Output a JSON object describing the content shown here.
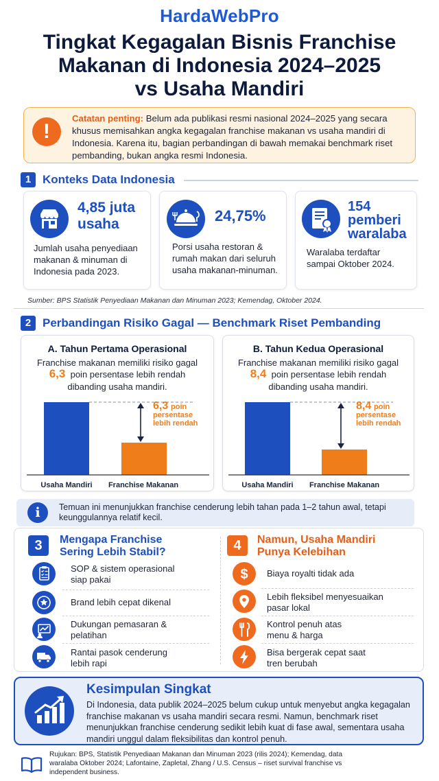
{
  "brand": "HardaWebPro",
  "title": {
    "line1": "Tingkat Kegagalan Bisnis Franchise",
    "line2": "Makanan di Indonesia 2024–2025",
    "line3": "vs Usaha Mandiri"
  },
  "note": {
    "icon": "exclamation-icon",
    "lead": "Catatan penting:",
    "text": "Belum ada publikasi resmi nasional 2024–2025 yang secara khusus memisahkan angka kegagalan franchise makanan vs usaha mandiri di Indonesia. Karena itu, bagian perbandingan di bawah memakai benchmark riset pembanding, bukan angka resmi Indonesia."
  },
  "section1": {
    "number": "1",
    "title": "Konteks Data Indonesia",
    "cards": [
      {
        "icon": "storefront-icon",
        "value_line1": "4,85 juta",
        "value_line2": "usaha",
        "value_line3": "",
        "description": "Jumlah usaha penyediaan makanan & minuman di Indonesia pada 2023."
      },
      {
        "icon": "restaurant-cloche-icon",
        "value_line1": "24,75%",
        "value_line2": "",
        "value_line3": "",
        "description": "Porsi usaha restoran & rumah makan dari seluruh usaha makanan-minuman."
      },
      {
        "icon": "certificate-icon",
        "value_line1": "154",
        "value_line2": "pemberi",
        "value_line3": "waralaba",
        "description": "Waralaba terdaftar sampai Oktober 2024."
      }
    ],
    "source": "Sumber: BPS Statistik Penyediaan Makanan dan Minuman 2023; Kemendag, Oktober 2024."
  },
  "section2": {
    "number": "2",
    "title": "Perbandingan Risiko Gagal — Benchmark Riset Pembanding",
    "panels": [
      {
        "title": "A. Tahun Pertama Operasional",
        "text_before": "Franchise makanan memiliki risiko gagal",
        "highlight": "6,3",
        "text_after": "poin persentase lebih rendah",
        "text_end": "dibanding usaha mandiri.",
        "annotation_value": "6,3",
        "annotation_l1": "poin",
        "annotation_l2": "persentase",
        "annotation_l3": "lebih rendah"
      },
      {
        "title": "B. Tahun Kedua Operasional",
        "text_before": "Franchise makanan memiliki risiko gagal",
        "highlight": "8,4",
        "text_after": "poin persentase lebih rendah",
        "text_end": "dibanding usaha mandiri.",
        "annotation_value": "8,4",
        "annotation_l1": "poin",
        "annotation_l2": "persentase",
        "annotation_l3": "lebih rendah"
      }
    ],
    "finding": "Temuan ini menunjukkan franchise cenderung lebih tahan pada 1–2 tahun awal, tetapi keunggulannya relatif kecil."
  },
  "chart_data": [
    {
      "type": "bar",
      "title": "A. Tahun Pertama Operasional",
      "categories": [
        "Usaha Mandiri",
        "Franchise Makanan"
      ],
      "difference_label": "6,3 poin persentase lebih rendah",
      "difference_points": 6.3,
      "colors": [
        "#1e4fbf",
        "#ef7d1a"
      ]
    },
    {
      "type": "bar",
      "title": "B. Tahun Kedua Operasional",
      "categories": [
        "Usaha Mandiri",
        "Franchise Makanan"
      ],
      "difference_label": "8,4 poin persentase lebih rendah",
      "difference_points": 8.4,
      "colors": [
        "#1e4fbf",
        "#ef7d1a"
      ]
    }
  ],
  "section3": {
    "number": "3",
    "title_line1": "Mengapa Franchise",
    "title_line2": "Sering Lebih Stabil?",
    "items": [
      {
        "icon": "checklist-icon",
        "line1": "SOP & sistem operasional",
        "line2": "siap pakai"
      },
      {
        "icon": "star-badge-icon",
        "line1": "Brand lebih cepat dikenal",
        "line2": ""
      },
      {
        "icon": "marketing-chart-icon",
        "line1": "Dukungan pemasaran &",
        "line2": "pelatihan"
      },
      {
        "icon": "delivery-truck-icon",
        "line1": "Rantai pasok cenderung",
        "line2": "lebih rapi"
      }
    ]
  },
  "section4": {
    "number": "4",
    "title_line1": "Namun, Usaha Mandiri",
    "title_line2": "Punya Kelebihan",
    "items": [
      {
        "icon": "dollar-icon",
        "line1": "Biaya royalti tidak ada",
        "line2": ""
      },
      {
        "icon": "location-pin-icon",
        "line1": "Lebih fleksibel menyesuaikan",
        "line2": "pasar lokal"
      },
      {
        "icon": "fork-knife-icon",
        "line1": "Kontrol penuh atas",
        "line2": "menu & harga"
      },
      {
        "icon": "lightning-icon",
        "line1": "Bisa bergerak cepat saat",
        "line2": "tren berubah"
      }
    ]
  },
  "conclusion": {
    "icon": "growth-chart-icon",
    "title": "Kesimpulan Singkat",
    "text": "Di Indonesia, data publik 2024–2025 belum cukup untuk menyebut angka kegagalan franchise makanan vs usaha mandiri secara resmi. Namun, benchmark riset menunjukkan franchise cenderung sedikit lebih kuat di fase awal, sementara usaha mandiri unggul dalam fleksibilitas dan kontrol penuh."
  },
  "references": {
    "icon": "book-icon",
    "text": "Rujukan: BPS, Statistik Penyediaan Makanan dan Minuman 2023 (rilis 2024); Kemendag, data waralaba Oktober 2024; Lafontaine, Zapletal, Zhang / U.S. Census – riset survival franchise vs independent business."
  }
}
